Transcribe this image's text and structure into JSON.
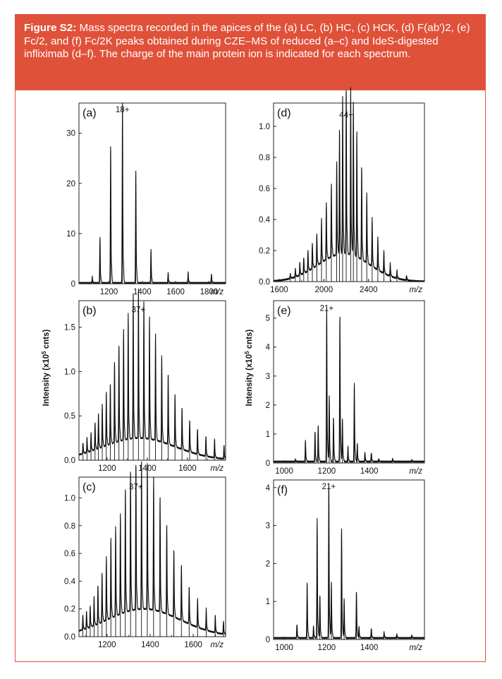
{
  "caption": {
    "label": "Figure S2:",
    "text": "Mass spectra recorded in the apices of the (a) LC, (b) HC, (c) HCK, (d) F(ab')2, (e) Fc/2, and (f) Fc/2K peaks obtained during CZE–MS of reduced (a–c) and IdeS-digested infliximab (d–f). The charge of the main protein ion is indicated for each spectrum."
  },
  "axis_text": {
    "ylabel_left": "Intensity (x10",
    "ylabel_sup": "5",
    "ylabel_suffix": " cnts)",
    "xunit": "m/z"
  },
  "colors": {
    "accent": "#e0513a",
    "line": "#111111"
  },
  "chart_data": [
    {
      "id": "a",
      "type": "line",
      "panel_label": "(a)",
      "charge_label": "18+",
      "xunit": "m/z",
      "xlim": [
        1020,
        1900
      ],
      "ylim": [
        0,
        36
      ],
      "xticks": [
        1200,
        1400,
        1600,
        1800
      ],
      "yticks": [
        0,
        10,
        20,
        30
      ],
      "ytick_labels": [
        "0",
        "10",
        "20",
        "30"
      ],
      "baseline": {
        "kind": "flat",
        "amp": 0.15,
        "center": 1400,
        "width": 300
      },
      "peaks": [
        [
          1100,
          1.2
        ],
        [
          1146,
          8.8
        ],
        [
          1210,
          26.6
        ],
        [
          1281,
          34.2
        ],
        [
          1361,
          21.4
        ],
        [
          1452,
          6.5
        ],
        [
          1555,
          2.0
        ],
        [
          1675,
          2.0
        ],
        [
          1815,
          1.7
        ]
      ]
    },
    {
      "id": "b",
      "type": "line",
      "panel_label": "(b)",
      "charge_label": "37+",
      "xunit": "m/z",
      "xlim": [
        1060,
        1790
      ],
      "ylim": [
        0,
        1.8
      ],
      "xticks": [
        1200,
        1400,
        1600
      ],
      "yticks": [
        0,
        0.5,
        1.0,
        1.5
      ],
      "ytick_labels": [
        "0.0",
        "0.5",
        "1.0",
        "1.5"
      ],
      "baseline": {
        "kind": "gauss",
        "amp": 0.25,
        "center": 1360,
        "width": 180
      },
      "peaks": [
        [
          1080,
          0.12
        ],
        [
          1100,
          0.16
        ],
        [
          1120,
          0.2
        ],
        [
          1140,
          0.3
        ],
        [
          1157,
          0.38
        ],
        [
          1176,
          0.47
        ],
        [
          1196,
          0.58
        ],
        [
          1216,
          0.66
        ],
        [
          1237,
          0.88
        ],
        [
          1259,
          1.05
        ],
        [
          1282,
          1.2
        ],
        [
          1305,
          1.37
        ],
        [
          1330,
          1.56
        ],
        [
          1356,
          1.62
        ],
        [
          1383,
          1.5
        ],
        [
          1411,
          1.32
        ],
        [
          1441,
          1.15
        ],
        [
          1472,
          0.93
        ],
        [
          1504,
          0.77
        ],
        [
          1538,
          0.57
        ],
        [
          1573,
          0.45
        ],
        [
          1611,
          0.35
        ],
        [
          1650,
          0.28
        ],
        [
          1692,
          0.22
        ],
        [
          1735,
          0.2
        ],
        [
          1782,
          0.15
        ]
      ]
    },
    {
      "id": "c",
      "type": "line",
      "panel_label": "(c)",
      "charge_label": "37+",
      "xunit": "m/z",
      "xlim": [
        1070,
        1750
      ],
      "ylim": [
        0,
        1.15
      ],
      "xticks": [
        1200,
        1400,
        1600
      ],
      "yticks": [
        0,
        0.2,
        0.4,
        0.6,
        0.8,
        1.0
      ],
      "ytick_labels": [
        "0.0",
        "0.2",
        "0.4",
        "0.6",
        "0.8",
        "1.0"
      ],
      "baseline": {
        "kind": "gauss",
        "amp": 0.2,
        "center": 1370,
        "width": 170
      },
      "peaks": [
        [
          1088,
          0.1
        ],
        [
          1105,
          0.12
        ],
        [
          1122,
          0.15
        ],
        [
          1140,
          0.2
        ],
        [
          1158,
          0.27
        ],
        [
          1177,
          0.34
        ],
        [
          1197,
          0.44
        ],
        [
          1218,
          0.55
        ],
        [
          1240,
          0.62
        ],
        [
          1262,
          0.7
        ],
        [
          1285,
          0.86
        ],
        [
          1309,
          0.98
        ],
        [
          1334,
          1.03
        ],
        [
          1360,
          1.02
        ],
        [
          1387,
          1.03
        ],
        [
          1416,
          0.92
        ],
        [
          1446,
          0.8
        ],
        [
          1477,
          0.62
        ],
        [
          1510,
          0.47
        ],
        [
          1545,
          0.38
        ],
        [
          1581,
          0.26
        ],
        [
          1620,
          0.2
        ],
        [
          1660,
          0.15
        ],
        [
          1702,
          0.12
        ],
        [
          1740,
          0.09
        ]
      ]
    },
    {
      "id": "d",
      "type": "line",
      "panel_label": "(d)",
      "charge_label": "44+",
      "xunit": "m/z",
      "xlim": [
        1550,
        2900
      ],
      "ylim": [
        0,
        1.15
      ],
      "xticks": [
        1600,
        2000,
        2400
      ],
      "yticks": [
        0,
        0.2,
        0.4,
        0.6,
        0.8,
        1.0
      ],
      "ytick_labels": [
        "0.0",
        "0.2",
        "0.4",
        "0.6",
        "0.8",
        "1.0"
      ],
      "baseline": {
        "kind": "gauss",
        "amp": 0.18,
        "center": 2180,
        "width": 230
      },
      "peaks": [
        [
          1700,
          0.03
        ],
        [
          1745,
          0.05
        ],
        [
          1785,
          0.08
        ],
        [
          1820,
          0.1
        ],
        [
          1858,
          0.13
        ],
        [
          1897,
          0.16
        ],
        [
          1937,
          0.2
        ],
        [
          1979,
          0.27
        ],
        [
          2022,
          0.35
        ],
        [
          2067,
          0.45
        ],
        [
          2115,
          0.58
        ],
        [
          2140,
          0.78
        ],
        [
          2168,
          0.97
        ],
        [
          2200,
          1.03
        ],
        [
          2240,
          1.03
        ],
        [
          2264,
          0.95
        ],
        [
          2295,
          0.78
        ],
        [
          2338,
          0.58
        ],
        [
          2384,
          0.43
        ],
        [
          2432,
          0.3
        ],
        [
          2483,
          0.2
        ],
        [
          2537,
          0.14
        ],
        [
          2594,
          0.08
        ],
        [
          2654,
          0.05
        ],
        [
          2740,
          0.03
        ]
      ]
    },
    {
      "id": "e",
      "type": "line",
      "panel_label": "(e)",
      "charge_label": "21+",
      "xunit": "m/z",
      "xlim": [
        950,
        1660
      ],
      "ylim": [
        0,
        5.6
      ],
      "xticks": [
        1000,
        1200,
        1400
      ],
      "yticks": [
        0,
        1,
        2,
        3,
        4,
        5
      ],
      "ytick_labels": [
        "0",
        "1",
        "2",
        "3",
        "4",
        "5"
      ],
      "baseline": {
        "kind": "flat",
        "amp": 0.05,
        "center": 1250,
        "width": 200
      },
      "peaks": [
        [
          1053,
          0.08
        ],
        [
          1100,
          0.7
        ],
        [
          1145,
          1.0
        ],
        [
          1160,
          1.2
        ],
        [
          1200,
          5.1
        ],
        [
          1212,
          2.2
        ],
        [
          1232,
          1.5
        ],
        [
          1262,
          4.9
        ],
        [
          1274,
          1.4
        ],
        [
          1300,
          0.5
        ],
        [
          1330,
          2.6
        ],
        [
          1344,
          0.6
        ],
        [
          1380,
          0.3
        ],
        [
          1410,
          0.3
        ],
        [
          1445,
          0.1
        ],
        [
          1510,
          0.1
        ],
        [
          1600,
          0.06
        ]
      ]
    },
    {
      "id": "f",
      "type": "line",
      "panel_label": "(f)",
      "charge_label": "21+",
      "xunit": "m/z",
      "xlim": [
        950,
        1660
      ],
      "ylim": [
        0,
        4.2
      ],
      "xticks": [
        1000,
        1200,
        1400
      ],
      "yticks": [
        0,
        1,
        2,
        3,
        4
      ],
      "ytick_labels": [
        "0",
        "1",
        "2",
        "3",
        "4"
      ],
      "baseline": {
        "kind": "flat",
        "amp": 0.04,
        "center": 1250,
        "width": 200
      },
      "peaks": [
        [
          1060,
          0.35
        ],
        [
          1108,
          1.4
        ],
        [
          1138,
          0.3
        ],
        [
          1155,
          3.0
        ],
        [
          1168,
          1.1
        ],
        [
          1210,
          3.95
        ],
        [
          1222,
          1.4
        ],
        [
          1270,
          2.8
        ],
        [
          1282,
          1.0
        ],
        [
          1340,
          1.2
        ],
        [
          1352,
          0.3
        ],
        [
          1410,
          0.25
        ],
        [
          1470,
          0.15
        ],
        [
          1530,
          0.1
        ],
        [
          1600,
          0.07
        ]
      ]
    }
  ]
}
